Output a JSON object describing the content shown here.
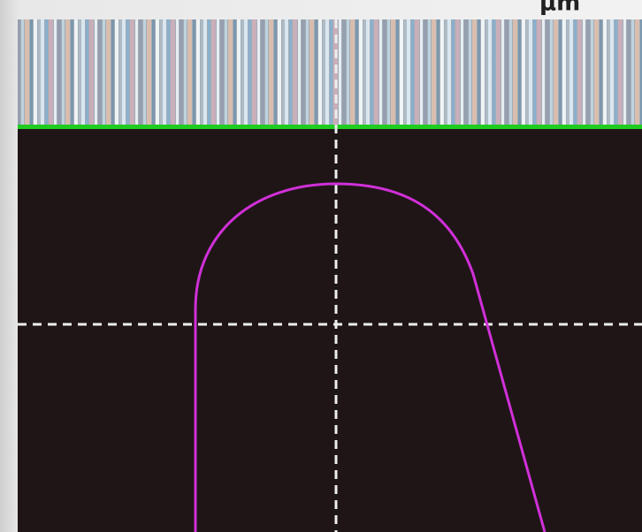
{
  "header": {
    "unit": "μm"
  }
}
